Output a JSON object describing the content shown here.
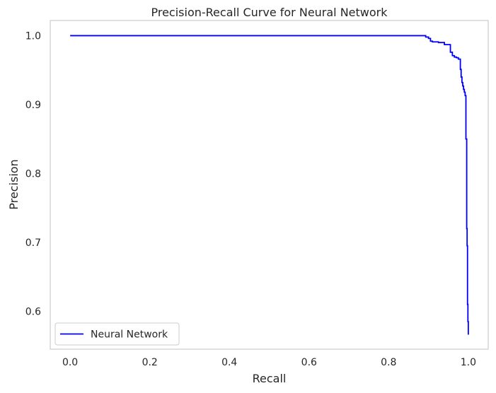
{
  "chart_data": {
    "type": "line",
    "title": "Precision-Recall Curve for Neural Network",
    "xlabel": "Recall",
    "ylabel": "Precision",
    "xlim": [
      -0.05,
      1.05
    ],
    "ylim": [
      0.545,
      1.022
    ],
    "xticks": [
      0.0,
      0.2,
      0.4,
      0.6,
      0.8,
      1.0
    ],
    "xtick_labels": [
      "0.0",
      "0.2",
      "0.4",
      "0.6",
      "0.8",
      "1.0"
    ],
    "yticks": [
      0.6,
      0.7,
      0.8,
      0.9,
      1.0
    ],
    "ytick_labels": [
      "0.6",
      "0.7",
      "0.8",
      "0.9",
      "1.0"
    ],
    "grid": false,
    "legend_position": "lower-left",
    "series": [
      {
        "name": "Neural Network",
        "color": "#0000ff",
        "x": [
          0.0,
          0.893,
          0.893,
          0.9,
          0.9,
          0.905,
          0.905,
          0.91,
          0.91,
          0.925,
          0.925,
          0.94,
          0.94,
          0.955,
          0.955,
          0.96,
          0.96,
          0.965,
          0.965,
          0.97,
          0.97,
          0.975,
          0.975,
          0.98,
          0.98,
          0.982,
          0.982,
          0.984,
          0.984,
          0.986,
          0.986,
          0.988,
          0.988,
          0.99,
          0.99,
          0.992,
          0.992,
          0.994,
          0.994,
          0.996,
          0.996,
          0.997,
          0.997,
          0.998,
          0.998,
          0.999,
          0.999,
          1.0,
          1.0
        ],
        "y": [
          1.0,
          1.0,
          0.998,
          0.998,
          0.996,
          0.996,
          0.992,
          0.992,
          0.991,
          0.991,
          0.99,
          0.99,
          0.987,
          0.987,
          0.976,
          0.976,
          0.971,
          0.971,
          0.969,
          0.969,
          0.968,
          0.968,
          0.966,
          0.966,
          0.951,
          0.951,
          0.94,
          0.94,
          0.932,
          0.932,
          0.927,
          0.927,
          0.922,
          0.922,
          0.918,
          0.918,
          0.913,
          0.913,
          0.85,
          0.85,
          0.72,
          0.72,
          0.695,
          0.695,
          0.61,
          0.61,
          0.585,
          0.585,
          0.566
        ]
      }
    ]
  }
}
